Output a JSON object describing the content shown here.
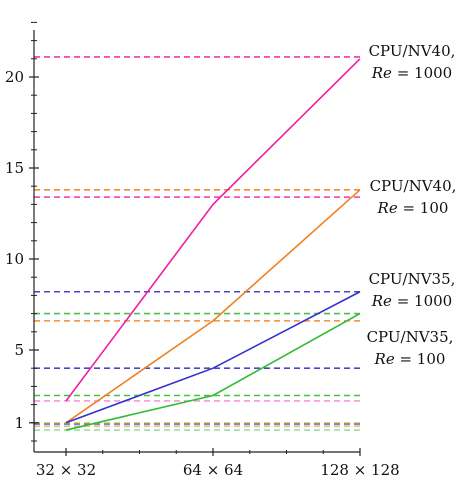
{
  "chart_data": {
    "type": "line",
    "title": "",
    "xlabel": "",
    "ylabel": "",
    "categories": [
      "32 × 32",
      "64 × 64",
      "128 × 128"
    ],
    "ylim": [
      0,
      23
    ],
    "y_ticks": [
      1,
      5,
      10,
      15,
      20
    ],
    "y_tick_labels": [
      "1",
      "5",
      "10",
      "15",
      "20"
    ],
    "grid": false,
    "legend": "none",
    "series": [
      {
        "color": "#ee1fa5",
        "values": [
          2.2,
          13.0,
          21.0
        ],
        "reference_values": [
          21.1,
          13.4,
          2.2,
          0.95
        ]
      },
      {
        "color": "#f08020",
        "values": [
          1.0,
          6.6,
          13.8
        ],
        "reference_values": [
          13.8,
          6.6,
          1.0,
          0.8
        ]
      },
      {
        "color": "#3333cc",
        "values": [
          1.0,
          4.0,
          8.2
        ],
        "reference_values": [
          8.2,
          4.0,
          0.9
        ]
      },
      {
        "color": "#33bb33",
        "values": [
          0.6,
          2.5,
          7.0
        ],
        "reference_values": [
          7.0,
          2.5,
          0.6,
          0.95
        ]
      }
    ],
    "annotations": [
      {
        "line1": "CPU/NV40,",
        "math": "Re",
        "line2": " = 1000",
        "color": "#ee1fa5"
      },
      {
        "line1": "CPU/NV40,",
        "math": "Re",
        "line2": " = 100",
        "color": "#f08020"
      },
      {
        "line1": "CPU/NV35,",
        "math": "Re",
        "line2": " = 1000",
        "color": "#3333cc"
      },
      {
        "line1": "CPU/NV35,",
        "math": "Re",
        "line2": " = 100",
        "color": "#33bb33"
      }
    ]
  }
}
